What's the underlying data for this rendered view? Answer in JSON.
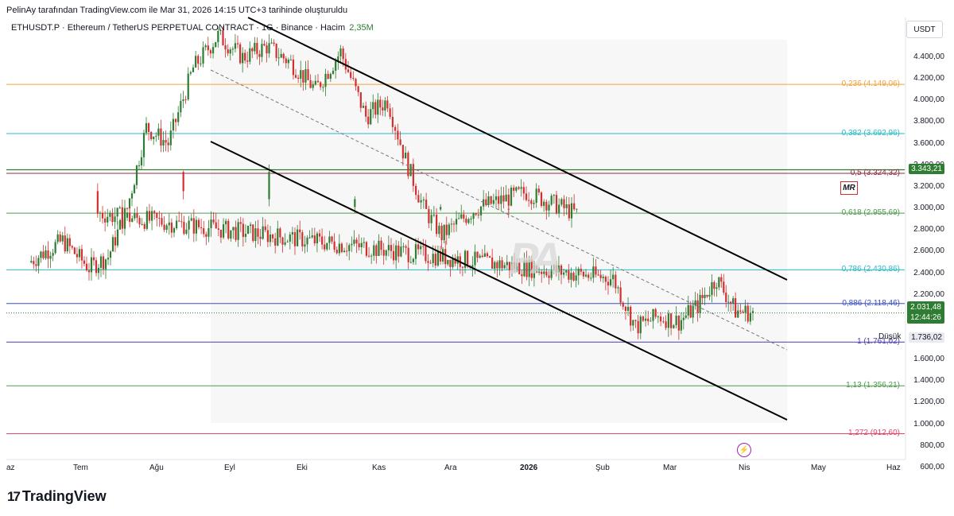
{
  "header": {
    "attribution": "PelinAy tarafından TradingView.com ile Mar 31, 2026 14:15 UTC+3 tarihinde oluşturuldu",
    "symbol_line": "ETHUSDT.P · Ethereum / TetherUS PERPETUAL CONTRACT · 1G · Binance · Hacim",
    "volume_value": "2,35M"
  },
  "axis": {
    "currency": "USDT",
    "y_ticks": [
      "4.400,00",
      "4.200,00",
      "4.000,00",
      "3.800,00",
      "3.600,00",
      "3.400,00",
      "3.200,00",
      "3.000,00",
      "2.800,00",
      "2.600,00",
      "2.400,00",
      "2.200,00",
      "1.800,00",
      "1.600,00",
      "1.400,00",
      "1.200,00",
      "1.000,00",
      "800,00",
      "600,00"
    ],
    "x_ticks": [
      "az",
      "Tem",
      "Ağu",
      "Eyl",
      "Eki",
      "Kas",
      "Ara",
      "2026",
      "Şub",
      "Mar",
      "Nis",
      "May",
      "Haz"
    ],
    "current_price": "2.031,48",
    "countdown": "12:44:26",
    "fib_price_tag": "3.343,21",
    "low_label": "Düşük",
    "low_value": "1.736,02"
  },
  "fib_levels": [
    {
      "label": "0,236 (4.149,06)",
      "price": 4149.06,
      "color": "#f0a33c"
    },
    {
      "label": "0,382 (3.692,96)",
      "price": 3692.96,
      "color": "#26b9c7"
    },
    {
      "label": "0,5 (3.324,32)",
      "price": 3324.32,
      "color": "#8d2b3e"
    },
    {
      "label": "0,618 (2.955,69)",
      "price": 2955.69,
      "color": "#4f9b4f"
    },
    {
      "label": "0,786 (2.430,86)",
      "price": 2430.86,
      "color": "#26b9c7"
    },
    {
      "label": "0,886 (2.118,46)",
      "price": 2118.46,
      "color": "#3a52c4"
    },
    {
      "label": "1 (1.761,02)",
      "price": 1761.02,
      "color": "#4d3fb0"
    },
    {
      "label": "1,13 (1.356,21)",
      "price": 1356.21,
      "color": "#4f9b4f"
    },
    {
      "label": "1,272 (912,60)",
      "price": 912.6,
      "color": "#e3456b"
    }
  ],
  "badges": {
    "mr": "MR",
    "bolt": "⚡"
  },
  "watermark": "PA",
  "brand": {
    "name": "TradingView",
    "mark": "17"
  },
  "colors": {
    "up": "#26a69a",
    "down": "#ef5350",
    "up_candle": "#2e7d32",
    "down_candle": "#d32f2f",
    "price_tag": "#2e7d32",
    "channel": "#000000"
  },
  "chart_data": {
    "type": "candlestick",
    "symbol": "ETHUSDT.P",
    "interval": "1G",
    "ylim": [
      600,
      4600
    ],
    "approx_closes": [
      {
        "x": "Haz",
        "y": 2500
      },
      {
        "x": "Haz",
        "y": 2700
      },
      {
        "x": "Tem",
        "y": 2450
      },
      {
        "x": "Tem",
        "y": 2550
      },
      {
        "x": "Tem",
        "y": 3000
      },
      {
        "x": "Tem",
        "y": 3750
      },
      {
        "x": "Ağu",
        "y": 3600
      },
      {
        "x": "Ağu",
        "y": 4300
      },
      {
        "x": "Ağu",
        "y": 4600
      },
      {
        "x": "Eyl",
        "y": 4400
      },
      {
        "x": "Eyl",
        "y": 4500
      },
      {
        "x": "Eyl",
        "y": 4350
      },
      {
        "x": "Eki",
        "y": 4100
      },
      {
        "x": "Eki",
        "y": 4450
      },
      {
        "x": "Eki",
        "y": 3850
      },
      {
        "x": "Kas",
        "y": 4000
      },
      {
        "x": "Kas",
        "y": 3450
      },
      {
        "x": "Kas",
        "y": 3000
      },
      {
        "x": "Kas",
        "y": 2750
      },
      {
        "x": "Ara",
        "y": 3000
      },
      {
        "x": "Ara",
        "y": 3150
      },
      {
        "x": "Ara",
        "y": 2950
      },
      {
        "x": "2026",
        "y": 3000
      },
      {
        "x": "2026",
        "y": 3300
      },
      {
        "x": "2026",
        "y": 2950
      },
      {
        "x": "Şub",
        "y": 2350
      },
      {
        "x": "Şub",
        "y": 1900
      },
      {
        "x": "Şub",
        "y": 2000
      },
      {
        "x": "Mar",
        "y": 1950
      },
      {
        "x": "Mar",
        "y": 2100
      },
      {
        "x": "Mar",
        "y": 2350
      },
      {
        "x": "Mar",
        "y": 2050
      },
      {
        "x": "Nis",
        "y": 2031.48
      }
    ],
    "channel": {
      "upper": [
        [
          "Eyl",
          4700
        ],
        [
          "Nis",
          2300
        ]
      ],
      "lower": [
        [
          "Eyl",
          3600
        ],
        [
          "Nis",
          950
        ]
      ]
    },
    "grid": false
  }
}
